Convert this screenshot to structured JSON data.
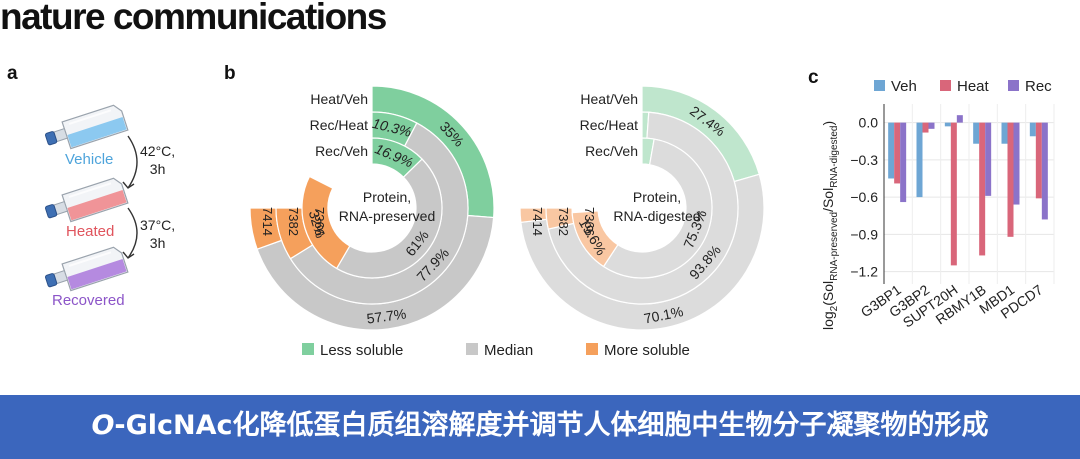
{
  "journal": "nature communications",
  "panels": {
    "a": "a",
    "b": "b",
    "c": "c"
  },
  "panel_a": {
    "flasks": [
      {
        "label": "Vehicle",
        "color": "#4ea4db",
        "fill": "#8cc9f0"
      },
      {
        "label": "Heated",
        "color": "#e0545d",
        "fill": "#f09498"
      },
      {
        "label": "Recovered",
        "color": "#8c55c8",
        "fill": "#b58ae0"
      }
    ],
    "steps": [
      {
        "line1": "42°C,",
        "line2": "3h"
      },
      {
        "line1": "37°C,",
        "line2": "3h"
      }
    ]
  },
  "banner": {
    "italic": "O",
    "rest": "-GlcNAc化降低蛋白质组溶解度并调节人体细胞中生物分子凝聚物的形成"
  },
  "chart_data": [
    {
      "type": "donut",
      "center_label": [
        "Protein,",
        "RNA-preserved"
      ],
      "rings": [
        {
          "name": "Heat/Veh",
          "n": "7414",
          "less": 35,
          "median": 57.7,
          "more": 7.3,
          "less_label": "35%",
          "median_label": "57.7%",
          "more_label": ""
        },
        {
          "name": "Rec/Heat",
          "n": "7382",
          "less": 10.3,
          "median": 77.9,
          "more": 11.8,
          "less_label": "10.3%",
          "median_label": "77.9%",
          "more_label": ""
        },
        {
          "name": "Rec/Veh",
          "n": "7366",
          "less": 16.9,
          "median": 61,
          "more": 32,
          "less_label": "16.9%",
          "median_label": "61%",
          "more_label": "32%"
        }
      ]
    },
    {
      "type": "donut",
      "center_label": [
        "Protein,",
        "RNA-digested"
      ],
      "rings": [
        {
          "name": "Heat/Veh",
          "n": "7414",
          "less": 27.4,
          "median": 70.1,
          "more": 2.5,
          "less_label": "27.4%",
          "median_label": "70.1%",
          "more_label": ""
        },
        {
          "name": "Rec/Heat",
          "n": "7382",
          "less": 1.5,
          "median": 93.8,
          "more": 4.7,
          "less_label": "",
          "median_label": "93.8%",
          "more_label": ""
        },
        {
          "name": "Rec/Veh",
          "n": "7366",
          "less": 3.7,
          "median": 75.3,
          "more": 19.6,
          "less_label": "",
          "median_label": "75.3%",
          "more_label": "19.6%"
        }
      ]
    },
    {
      "type": "bar",
      "ylabel_main": "log",
      "ylabel_sub2": "2",
      "ylabel_open": "(Sol",
      "ylabel_sub_num": "RNA-preserved",
      "ylabel_mid": "/Sol",
      "ylabel_sub_den": "RNA-digested",
      "ylabel_close": ")",
      "ylim": [
        -1.3,
        0.15
      ],
      "yticks": [
        0.0,
        -0.3,
        -0.6,
        -0.9,
        -1.2
      ],
      "ytick_labels": [
        "0.0",
        "−0.3",
        "−0.6",
        "−0.9",
        "−1.2"
      ],
      "grid": true,
      "legend_position": "top",
      "categories": [
        "G3BP1",
        "G3BP2",
        "SUPT20H",
        "RBMY1B",
        "MBD1",
        "PDCD7"
      ],
      "series": [
        {
          "name": "Veh",
          "color": "#6ea6d4",
          "values": [
            -0.45,
            -0.6,
            -0.03,
            -0.17,
            -0.17,
            -0.11
          ]
        },
        {
          "name": "Heat",
          "color": "#d9667a",
          "values": [
            -0.49,
            -0.08,
            -1.15,
            -1.07,
            -0.92,
            -0.61
          ]
        },
        {
          "name": "Rec",
          "color": "#8b73c9",
          "values": [
            -0.64,
            -0.05,
            0.06,
            -0.59,
            -0.66,
            -0.78
          ]
        }
      ]
    }
  ],
  "legend_b": [
    {
      "label": "Less soluble",
      "color": "#7fcf9e"
    },
    {
      "label": "Median",
      "color": "#c8c8c8"
    },
    {
      "label": "More soluble",
      "color": "#f5a05c"
    }
  ],
  "colors": {
    "less": "#7fcf9e",
    "less_light": "#bfe6cd",
    "median": "#c8c8c8",
    "median_light": "#dcdcdc",
    "more": "#f5a05c",
    "more_light": "#f9c7a2"
  }
}
